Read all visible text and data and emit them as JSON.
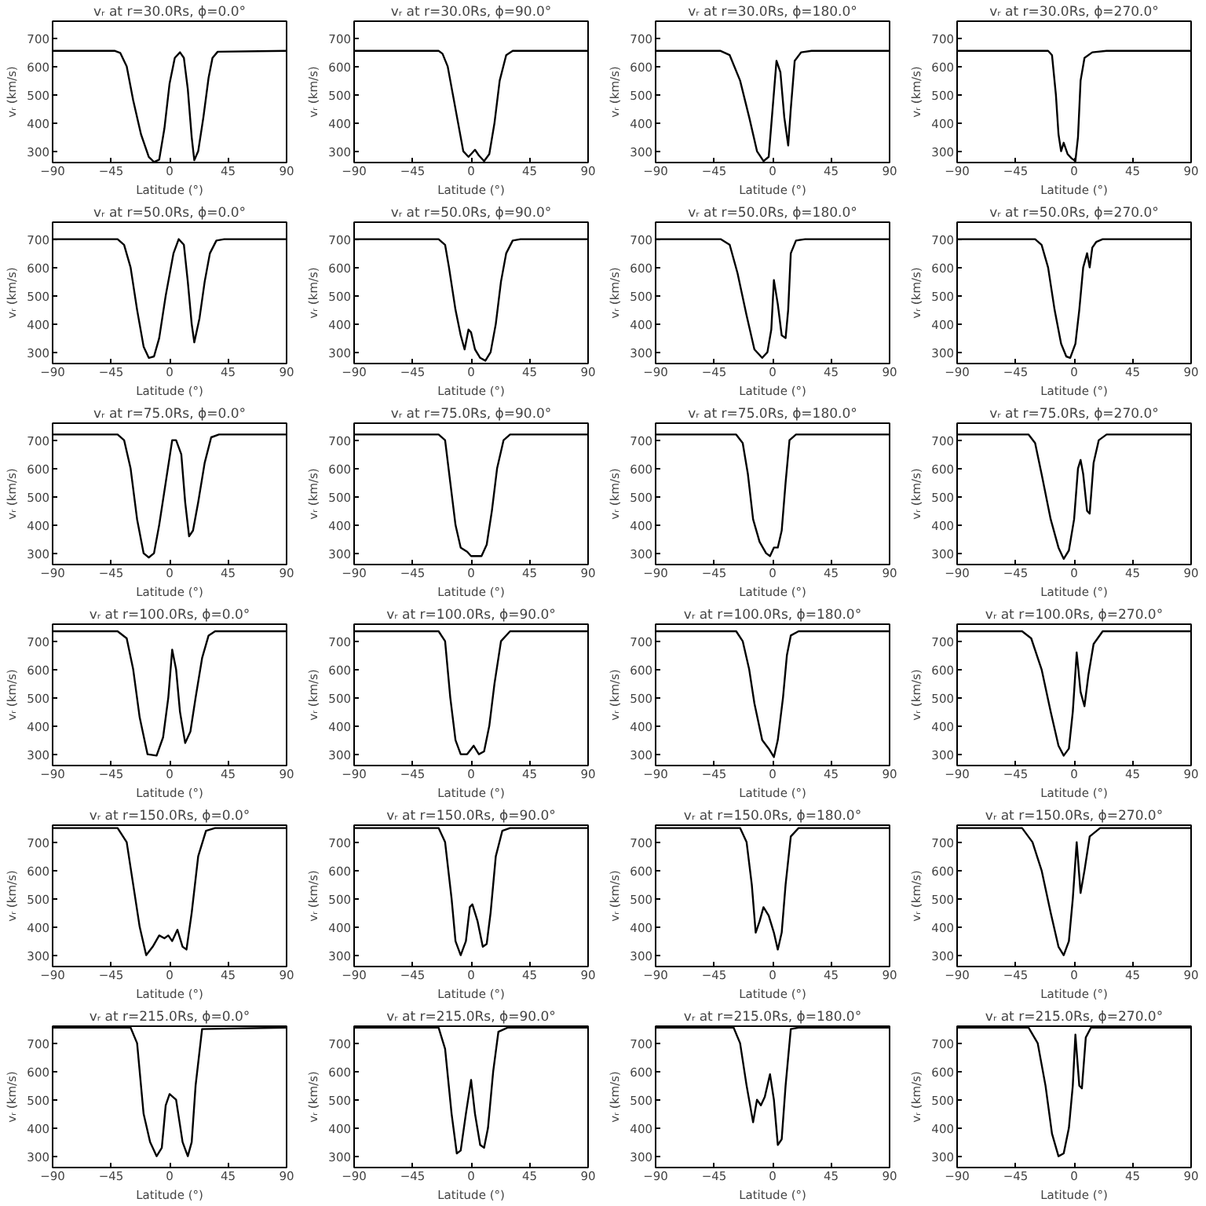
{
  "chart_data": [
    {
      "type": "line",
      "title": "vᵣ at r=30.0Rs, ϕ=0.0°",
      "xlabel": "Latitude (°)",
      "ylabel": "vᵣ (km/s)",
      "color": "#000000",
      "xlim": [
        -90,
        90
      ],
      "ylim": [
        260,
        760
      ],
      "xticks": [
        -90,
        -45,
        0,
        45,
        90
      ],
      "yticks": [
        300,
        400,
        500,
        600,
        700
      ],
      "x": [
        -90,
        -42,
        -38,
        -33,
        -28,
        -22,
        -16,
        -12,
        -8,
        -4,
        0,
        4,
        8,
        11,
        14,
        17,
        19,
        22,
        26,
        30,
        33,
        37,
        90
      ],
      "values": [
        655,
        655,
        648,
        600,
        480,
        360,
        280,
        262,
        270,
        380,
        540,
        630,
        650,
        630,
        520,
        350,
        268,
        300,
        420,
        560,
        630,
        652,
        655
      ]
    },
    {
      "type": "line",
      "title": "vᵣ at r=30.0Rs, ϕ=90.0°",
      "xlabel": "Latitude (°)",
      "ylabel": "vᵣ (km/s)",
      "color": "#000000",
      "xlim": [
        -90,
        90
      ],
      "ylim": [
        260,
        760
      ],
      "xticks": [
        -90,
        -45,
        0,
        45,
        90
      ],
      "yticks": [
        300,
        400,
        500,
        600,
        700
      ],
      "x": [
        -90,
        -25,
        -22,
        -18,
        -14,
        -10,
        -6,
        -2,
        0,
        3,
        6,
        10,
        14,
        18,
        22,
        27,
        32,
        90
      ],
      "values": [
        655,
        655,
        645,
        600,
        500,
        400,
        300,
        280,
        290,
        305,
        285,
        265,
        290,
        400,
        550,
        640,
        655,
        655
      ]
    },
    {
      "type": "line",
      "title": "vᵣ at r=30.0Rs, ϕ=180.0°",
      "xlabel": "Latitude (°)",
      "ylabel": "vᵣ (km/s)",
      "color": "#000000",
      "xlim": [
        -90,
        90
      ],
      "ylim": [
        260,
        760
      ],
      "xticks": [
        -90,
        -45,
        0,
        45,
        90
      ],
      "yticks": [
        300,
        400,
        500,
        600,
        700
      ],
      "x": [
        -90,
        -40,
        -33,
        -25,
        -18,
        -12,
        -7,
        -3,
        0,
        3,
        6,
        9,
        12,
        14,
        17,
        22,
        30,
        90
      ],
      "values": [
        655,
        655,
        640,
        550,
        420,
        300,
        265,
        280,
        450,
        620,
        580,
        420,
        320,
        450,
        620,
        650,
        655,
        655
      ]
    },
    {
      "type": "line",
      "title": "vᵣ at r=30.0Rs, ϕ=270.0°",
      "xlabel": "Latitude (°)",
      "ylabel": "vᵣ (km/s)",
      "color": "#000000",
      "xlim": [
        -90,
        90
      ],
      "ylim": [
        260,
        760
      ],
      "xticks": [
        -90,
        -45,
        0,
        45,
        90
      ],
      "yticks": [
        300,
        400,
        500,
        600,
        700
      ],
      "x": [
        -90,
        -20,
        -17,
        -14,
        -12,
        -10,
        -8,
        -5,
        -2,
        1,
        3,
        5,
        8,
        14,
        25,
        90
      ],
      "values": [
        655,
        655,
        640,
        500,
        360,
        300,
        330,
        290,
        275,
        265,
        350,
        550,
        630,
        650,
        655,
        655
      ]
    },
    {
      "type": "line",
      "title": "vᵣ at r=50.0Rs, ϕ=0.0°",
      "xlabel": "Latitude (°)",
      "ylabel": "vᵣ (km/s)",
      "color": "#000000",
      "xlim": [
        -90,
        90
      ],
      "ylim": [
        260,
        760
      ],
      "xticks": [
        -90,
        -45,
        0,
        45,
        90
      ],
      "yticks": [
        300,
        400,
        500,
        600,
        700
      ],
      "x": [
        -90,
        -40,
        -35,
        -30,
        -25,
        -20,
        -16,
        -12,
        -8,
        -3,
        3,
        7,
        11,
        14,
        17,
        19,
        23,
        27,
        31,
        36,
        42,
        90
      ],
      "values": [
        700,
        700,
        680,
        600,
        450,
        320,
        280,
        285,
        350,
        500,
        650,
        700,
        680,
        550,
        400,
        335,
        420,
        550,
        650,
        695,
        700,
        700
      ]
    },
    {
      "type": "line",
      "title": "vᵣ at r=50.0Rs, ϕ=90.0°",
      "xlabel": "Latitude (°)",
      "ylabel": "vᵣ (km/s)",
      "color": "#000000",
      "xlim": [
        -90,
        90
      ],
      "ylim": [
        260,
        760
      ],
      "xticks": [
        -90,
        -45,
        0,
        45,
        90
      ],
      "yticks": [
        300,
        400,
        500,
        600,
        700
      ],
      "x": [
        -90,
        -25,
        -20,
        -17,
        -12,
        -8,
        -5,
        -2,
        0,
        3,
        7,
        11,
        15,
        19,
        23,
        27,
        32,
        38,
        90
      ],
      "values": [
        700,
        700,
        680,
        600,
        450,
        360,
        310,
        380,
        370,
        310,
        280,
        270,
        300,
        400,
        550,
        650,
        695,
        700,
        700
      ]
    },
    {
      "type": "line",
      "title": "vᵣ at r=50.0Rs, ϕ=180.0°",
      "xlabel": "Latitude (°)",
      "ylabel": "vᵣ (km/s)",
      "color": "#000000",
      "xlim": [
        -90,
        90
      ],
      "ylim": [
        260,
        760
      ],
      "xticks": [
        -90,
        -45,
        0,
        45,
        90
      ],
      "yticks": [
        300,
        400,
        500,
        600,
        700
      ],
      "x": [
        -90,
        -40,
        -33,
        -27,
        -20,
        -14,
        -8,
        -4,
        -1,
        1,
        4,
        7,
        10,
        12,
        14,
        18,
        25,
        90
      ],
      "values": [
        700,
        700,
        680,
        580,
        430,
        310,
        280,
        300,
        380,
        555,
        470,
        360,
        350,
        450,
        650,
        695,
        700,
        700
      ]
    },
    {
      "type": "line",
      "title": "vᵣ at r=50.0Rs, ϕ=270.0°",
      "xlabel": "Latitude (°)",
      "ylabel": "vᵣ (km/s)",
      "color": "#000000",
      "xlim": [
        -90,
        90
      ],
      "ylim": [
        260,
        760
      ],
      "xticks": [
        -90,
        -45,
        0,
        45,
        90
      ],
      "yticks": [
        300,
        400,
        500,
        600,
        700
      ],
      "x": [
        -90,
        -30,
        -25,
        -20,
        -15,
        -10,
        -6,
        -3,
        1,
        4,
        7,
        10,
        12,
        14,
        17,
        22,
        90
      ],
      "values": [
        700,
        700,
        680,
        600,
        450,
        330,
        285,
        280,
        330,
        450,
        600,
        650,
        600,
        670,
        690,
        700,
        700
      ]
    },
    {
      "type": "line",
      "title": "vᵣ at r=75.0Rs, ϕ=0.0°",
      "xlabel": "Latitude (°)",
      "ylabel": "vᵣ (km/s)",
      "color": "#000000",
      "xlim": [
        -90,
        90
      ],
      "ylim": [
        260,
        760
      ],
      "xticks": [
        -90,
        -45,
        0,
        45,
        90
      ],
      "yticks": [
        300,
        400,
        500,
        600,
        700
      ],
      "x": [
        -90,
        -40,
        -35,
        -30,
        -25,
        -20,
        -16,
        -12,
        -8,
        -3,
        2,
        5,
        9,
        12,
        15,
        18,
        22,
        27,
        32,
        38,
        90
      ],
      "values": [
        720,
        720,
        700,
        600,
        420,
        300,
        285,
        300,
        400,
        550,
        700,
        700,
        650,
        480,
        360,
        380,
        480,
        620,
        710,
        720,
        720
      ]
    },
    {
      "type": "line",
      "title": "vᵣ at r=75.0Rs, ϕ=90.0°",
      "xlabel": "Latitude (°)",
      "ylabel": "vᵣ (km/s)",
      "color": "#000000",
      "xlim": [
        -90,
        90
      ],
      "ylim": [
        260,
        760
      ],
      "xticks": [
        -90,
        -45,
        0,
        45,
        90
      ],
      "yticks": [
        300,
        400,
        500,
        600,
        700
      ],
      "x": [
        -90,
        -25,
        -20,
        -16,
        -12,
        -8,
        -3,
        0,
        8,
        12,
        16,
        20,
        25,
        30,
        90
      ],
      "values": [
        720,
        720,
        700,
        550,
        400,
        320,
        305,
        290,
        290,
        330,
        450,
        600,
        700,
        720,
        720
      ]
    },
    {
      "type": "line",
      "title": "vᵣ at r=75.0Rs, ϕ=180.0°",
      "xlabel": "Latitude (°)",
      "ylabel": "vᵣ (km/s)",
      "color": "#000000",
      "xlim": [
        -90,
        90
      ],
      "ylim": [
        260,
        760
      ],
      "xticks": [
        -90,
        -45,
        0,
        45,
        90
      ],
      "yticks": [
        300,
        400,
        500,
        600,
        700
      ],
      "x": [
        -90,
        -28,
        -23,
        -19,
        -15,
        -10,
        -5,
        -2,
        1,
        4,
        7,
        10,
        13,
        18,
        90
      ],
      "values": [
        720,
        720,
        690,
        580,
        420,
        340,
        300,
        290,
        320,
        320,
        380,
        550,
        700,
        720,
        720
      ]
    },
    {
      "type": "line",
      "title": "vᵣ at r=75.0Rs, ϕ=270.0°",
      "xlabel": "Latitude (°)",
      "ylabel": "vᵣ (km/s)",
      "color": "#000000",
      "xlim": [
        -90,
        90
      ],
      "ylim": [
        260,
        760
      ],
      "xticks": [
        -90,
        -45,
        0,
        45,
        90
      ],
      "yticks": [
        300,
        400,
        500,
        600,
        700
      ],
      "x": [
        -90,
        -35,
        -30,
        -25,
        -18,
        -12,
        -8,
        -4,
        0,
        3,
        5,
        7,
        10,
        12,
        15,
        19,
        25,
        90
      ],
      "values": [
        720,
        720,
        690,
        580,
        420,
        320,
        280,
        310,
        420,
        600,
        630,
        580,
        450,
        440,
        620,
        700,
        720,
        720
      ]
    },
    {
      "type": "line",
      "title": "vᵣ at r=100.0Rs, ϕ=0.0°",
      "xlabel": "Latitude (°)",
      "ylabel": "vᵣ (km/s)",
      "color": "#000000",
      "xlim": [
        -90,
        90
      ],
      "ylim": [
        260,
        760
      ],
      "xticks": [
        -90,
        -45,
        0,
        45,
        90
      ],
      "yticks": [
        300,
        400,
        500,
        600,
        700
      ],
      "x": [
        -90,
        -40,
        -33,
        -28,
        -23,
        -17,
        -10,
        -5,
        -1,
        2,
        5,
        8,
        12,
        16,
        20,
        25,
        30,
        35,
        90
      ],
      "values": [
        735,
        735,
        710,
        600,
        430,
        300,
        295,
        360,
        500,
        670,
        600,
        450,
        340,
        380,
        500,
        640,
        720,
        735,
        735
      ]
    },
    {
      "type": "line",
      "title": "vᵣ at r=100.0Rs, ϕ=90.0°",
      "xlabel": "Latitude (°)",
      "ylabel": "vᵣ (km/s)",
      "color": "#000000",
      "xlim": [
        -90,
        90
      ],
      "ylim": [
        260,
        760
      ],
      "xticks": [
        -90,
        -45,
        0,
        45,
        90
      ],
      "yticks": [
        300,
        400,
        500,
        600,
        700
      ],
      "x": [
        -90,
        -25,
        -20,
        -16,
        -12,
        -8,
        -3,
        2,
        6,
        10,
        14,
        18,
        23,
        30,
        90
      ],
      "values": [
        735,
        735,
        700,
        500,
        350,
        300,
        300,
        330,
        300,
        310,
        400,
        550,
        700,
        735,
        735
      ]
    },
    {
      "type": "line",
      "title": "vᵣ at r=100.0Rs, ϕ=180.0°",
      "xlabel": "Latitude (°)",
      "ylabel": "vᵣ (km/s)",
      "color": "#000000",
      "xlim": [
        -90,
        90
      ],
      "ylim": [
        260,
        760
      ],
      "xticks": [
        -90,
        -45,
        0,
        45,
        90
      ],
      "yticks": [
        300,
        400,
        500,
        600,
        700
      ],
      "x": [
        -90,
        -28,
        -23,
        -18,
        -14,
        -8,
        -3,
        1,
        4,
        8,
        11,
        14,
        20,
        90
      ],
      "values": [
        735,
        735,
        700,
        600,
        480,
        350,
        320,
        290,
        350,
        500,
        650,
        720,
        735,
        735
      ]
    },
    {
      "type": "line",
      "title": "vᵣ at r=100.0Rs, ϕ=270.0°",
      "xlabel": "Latitude (°)",
      "ylabel": "vᵣ (km/s)",
      "color": "#000000",
      "xlim": [
        -90,
        90
      ],
      "ylim": [
        260,
        760
      ],
      "xticks": [
        -90,
        -45,
        0,
        45,
        90
      ],
      "yticks": [
        300,
        400,
        500,
        600,
        700
      ],
      "x": [
        -90,
        -40,
        -33,
        -25,
        -18,
        -12,
        -8,
        -4,
        -1,
        2,
        5,
        8,
        11,
        15,
        22,
        90
      ],
      "values": [
        735,
        735,
        710,
        600,
        450,
        330,
        295,
        320,
        450,
        660,
        520,
        470,
        580,
        690,
        735,
        735
      ]
    },
    {
      "type": "line",
      "title": "vᵣ at r=150.0Rs, ϕ=0.0°",
      "xlabel": "Latitude (°)",
      "ylabel": "vᵣ (km/s)",
      "color": "#000000",
      "xlim": [
        -90,
        90
      ],
      "ylim": [
        260,
        760
      ],
      "xticks": [
        -90,
        -45,
        0,
        45,
        90
      ],
      "yticks": [
        300,
        400,
        500,
        600,
        700
      ],
      "x": [
        -90,
        -40,
        -33,
        -28,
        -23,
        -18,
        -13,
        -8,
        -4,
        -1,
        2,
        6,
        10,
        13,
        17,
        22,
        28,
        35,
        90
      ],
      "values": [
        750,
        750,
        700,
        550,
        400,
        300,
        330,
        370,
        360,
        370,
        350,
        390,
        330,
        320,
        450,
        650,
        740,
        750,
        750
      ]
    },
    {
      "type": "line",
      "title": "vᵣ at r=150.0Rs, ϕ=90.0°",
      "xlabel": "Latitude (°)",
      "ylabel": "vᵣ (km/s)",
      "color": "#000000",
      "xlim": [
        -90,
        90
      ],
      "ylim": [
        260,
        760
      ],
      "xticks": [
        -90,
        -45,
        0,
        45,
        90
      ],
      "yticks": [
        300,
        400,
        500,
        600,
        700
      ],
      "x": [
        -90,
        -25,
        -20,
        -15,
        -12,
        -8,
        -4,
        -1,
        1,
        5,
        9,
        12,
        15,
        19,
        24,
        30,
        90
      ],
      "values": [
        750,
        750,
        700,
        500,
        350,
        300,
        350,
        470,
        480,
        420,
        330,
        340,
        450,
        650,
        740,
        750,
        750
      ]
    },
    {
      "type": "line",
      "title": "vᵣ at r=150.0Rs, ϕ=180.0°",
      "xlabel": "Latitude (°)",
      "ylabel": "vᵣ (km/s)",
      "color": "#000000",
      "xlim": [
        -90,
        90
      ],
      "ylim": [
        260,
        760
      ],
      "xticks": [
        -90,
        -45,
        0,
        45,
        90
      ],
      "yticks": [
        300,
        400,
        500,
        600,
        700
      ],
      "x": [
        -90,
        -25,
        -20,
        -16,
        -13,
        -10,
        -7,
        -3,
        1,
        4,
        7,
        10,
        14,
        20,
        90
      ],
      "values": [
        750,
        750,
        700,
        550,
        380,
        420,
        470,
        440,
        380,
        320,
        380,
        550,
        720,
        750,
        750
      ]
    },
    {
      "type": "line",
      "title": "vᵣ at r=150.0Rs, ϕ=270.0°",
      "xlabel": "Latitude (°)",
      "ylabel": "vᵣ (km/s)",
      "color": "#000000",
      "xlim": [
        -90,
        90
      ],
      "ylim": [
        260,
        760
      ],
      "xticks": [
        -90,
        -45,
        0,
        45,
        90
      ],
      "yticks": [
        300,
        400,
        500,
        600,
        700
      ],
      "x": [
        -90,
        -40,
        -32,
        -25,
        -18,
        -12,
        -8,
        -4,
        -1,
        2,
        5,
        8,
        12,
        20,
        90
      ],
      "values": [
        750,
        750,
        700,
        600,
        450,
        330,
        300,
        350,
        500,
        700,
        520,
        600,
        720,
        750,
        750
      ]
    },
    {
      "type": "line",
      "title": "vᵣ at r=215.0Rs, ϕ=0.0°",
      "xlabel": "Latitude (°)",
      "ylabel": "vᵣ (km/s)",
      "color": "#000000",
      "xlim": [
        -90,
        90
      ],
      "ylim": [
        260,
        760
      ],
      "xticks": [
        -90,
        -45,
        0,
        45,
        90
      ],
      "yticks": [
        300,
        400,
        500,
        600,
        700
      ],
      "x": [
        -90,
        -30,
        -25,
        -20,
        -15,
        -10,
        -6,
        -3,
        0,
        5,
        10,
        14,
        17,
        20,
        25,
        90
      ],
      "values": [
        755,
        755,
        700,
        450,
        350,
        300,
        330,
        480,
        520,
        500,
        350,
        300,
        350,
        550,
        750,
        755
      ]
    },
    {
      "type": "line",
      "title": "vᵣ at r=215.0Rs, ϕ=90.0°",
      "xlabel": "Latitude (°)",
      "ylabel": "vᵣ (km/s)",
      "color": "#000000",
      "xlim": [
        -90,
        90
      ],
      "ylim": [
        260,
        760
      ],
      "xticks": [
        -90,
        -45,
        0,
        45,
        90
      ],
      "yticks": [
        300,
        400,
        500,
        600,
        700
      ],
      "x": [
        -90,
        -25,
        -20,
        -15,
        -11,
        -8,
        -4,
        0,
        3,
        7,
        10,
        13,
        17,
        21,
        28,
        90
      ],
      "values": [
        755,
        755,
        680,
        450,
        310,
        320,
        450,
        570,
        450,
        340,
        330,
        400,
        600,
        740,
        755,
        755
      ]
    },
    {
      "type": "line",
      "title": "vᵣ at r=215.0Rs, ϕ=180.0°",
      "xlabel": "Latitude (°)",
      "ylabel": "vᵣ (km/s)",
      "color": "#000000",
      "xlim": [
        -90,
        90
      ],
      "ylim": [
        260,
        760
      ],
      "xticks": [
        -90,
        -45,
        0,
        45,
        90
      ],
      "yticks": [
        300,
        400,
        500,
        600,
        700
      ],
      "x": [
        -90,
        -30,
        -25,
        -20,
        -15,
        -12,
        -9,
        -6,
        -2,
        1,
        4,
        7,
        10,
        14,
        20,
        90
      ],
      "values": [
        755,
        755,
        700,
        550,
        420,
        500,
        480,
        510,
        590,
        500,
        340,
        360,
        550,
        750,
        755,
        755
      ]
    },
    {
      "type": "line",
      "title": "vᵣ at r=215.0Rs, ϕ=270.0°",
      "xlabel": "Latitude (°)",
      "ylabel": "vᵣ (km/s)",
      "color": "#000000",
      "xlim": [
        -90,
        90
      ],
      "ylim": [
        260,
        760
      ],
      "xticks": [
        -90,
        -45,
        0,
        45,
        90
      ],
      "yticks": [
        300,
        400,
        500,
        600,
        700
      ],
      "x": [
        -90,
        -35,
        -28,
        -22,
        -17,
        -12,
        -8,
        -4,
        -1,
        1,
        4,
        6,
        9,
        13,
        90
      ],
      "values": [
        755,
        755,
        700,
        550,
        380,
        300,
        310,
        400,
        550,
        730,
        550,
        540,
        720,
        755,
        755
      ]
    }
  ]
}
